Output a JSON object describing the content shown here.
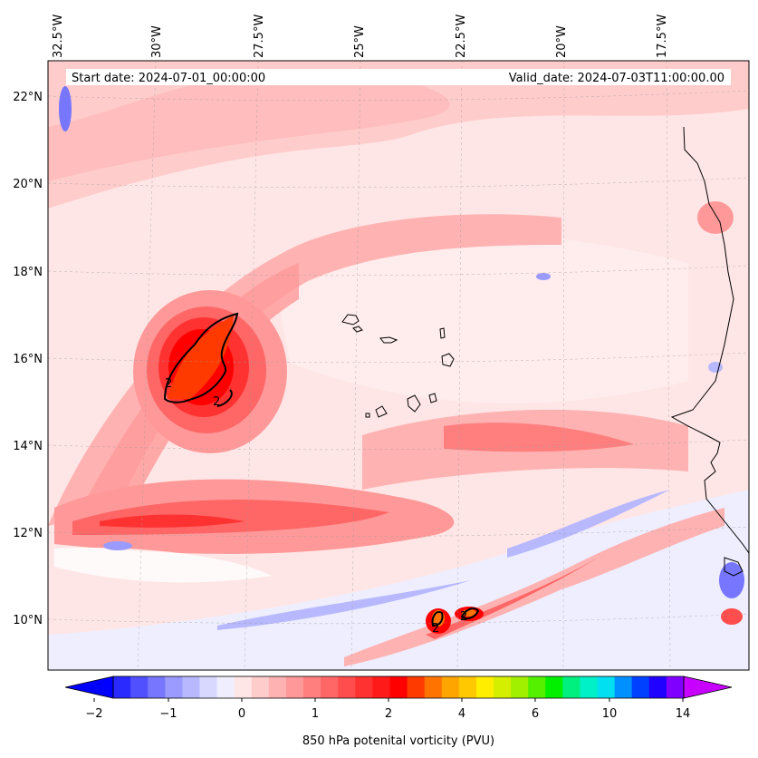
{
  "map": {
    "start_label": "Start date: 2024-07-01_00:00:00",
    "valid_label": "Valid_date: 2024-07-03T11:00:00.00",
    "lon_labels": [
      "32.5°W",
      "30°W",
      "27.5°W",
      "25°W",
      "22.5°W",
      "20°W",
      "17.5°W"
    ],
    "lat_labels": [
      "22°N",
      "20°N",
      "18°N",
      "16°N",
      "14°N",
      "12°N",
      "10°N"
    ],
    "contour_labels": [
      "2",
      "2",
      "2",
      "2"
    ]
  },
  "colorbar": {
    "title": "850 hPa potenital vorticity (PVU)",
    "tick_labels": [
      "−2",
      "−1",
      "0",
      "1",
      "2",
      "4",
      "6",
      "10",
      "14"
    ],
    "colors": [
      "#0000ff",
      "#2a2aff",
      "#5050ff",
      "#7676ff",
      "#9a9aff",
      "#b8b8ff",
      "#d8d8ff",
      "#eeeeff",
      "#ffe6e6",
      "#ffcccc",
      "#ffb2b2",
      "#ff9999",
      "#ff7f7f",
      "#ff6666",
      "#ff4c4c",
      "#ff3232",
      "#ff1a1a",
      "#ff0000",
      "#ff3a00",
      "#ff7400",
      "#ffa500",
      "#ffc800",
      "#ffee00",
      "#d4f000",
      "#a0f000",
      "#55f000",
      "#00f000",
      "#00f080",
      "#00f0c8",
      "#00e0f0",
      "#0090ff",
      "#0040ff",
      "#2000ff",
      "#8000ff",
      "#c800ff"
    ]
  },
  "colors": {
    "background": "#ffffff",
    "base_pink": "#ffe6e6",
    "coast": "#000000"
  }
}
